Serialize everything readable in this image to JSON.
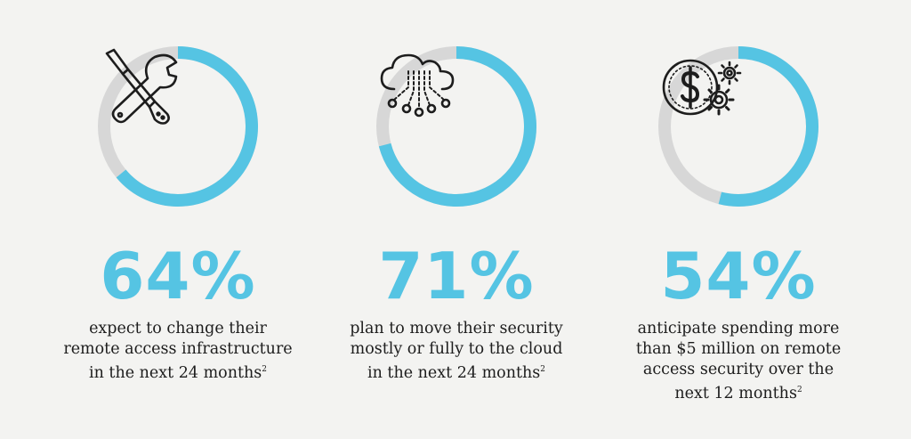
{
  "colors": {
    "accent": "#55c4e3",
    "track": "#d7d7d7",
    "text": "#1d1d1d",
    "background": "#f3f3f1"
  },
  "chart_data": {
    "type": "donut",
    "stats": [
      {
        "value": 64,
        "label": "64%",
        "icon": "tools-icon",
        "lines": [
          "expect to change their",
          "remote access infrastructure",
          "in the next 24 months"
        ],
        "footnote": "2"
      },
      {
        "value": 71,
        "label": "71%",
        "icon": "cloud-network-icon",
        "lines": [
          "plan to move their security",
          "mostly or fully to the cloud",
          "in the next 24 months"
        ],
        "footnote": "2"
      },
      {
        "value": 54,
        "label": "54%",
        "icon": "dollar-gears-icon",
        "lines": [
          "anticipate spending more",
          "than $5 million on remote",
          "access security over the",
          "next 12 months"
        ],
        "footnote": "2"
      }
    ]
  }
}
